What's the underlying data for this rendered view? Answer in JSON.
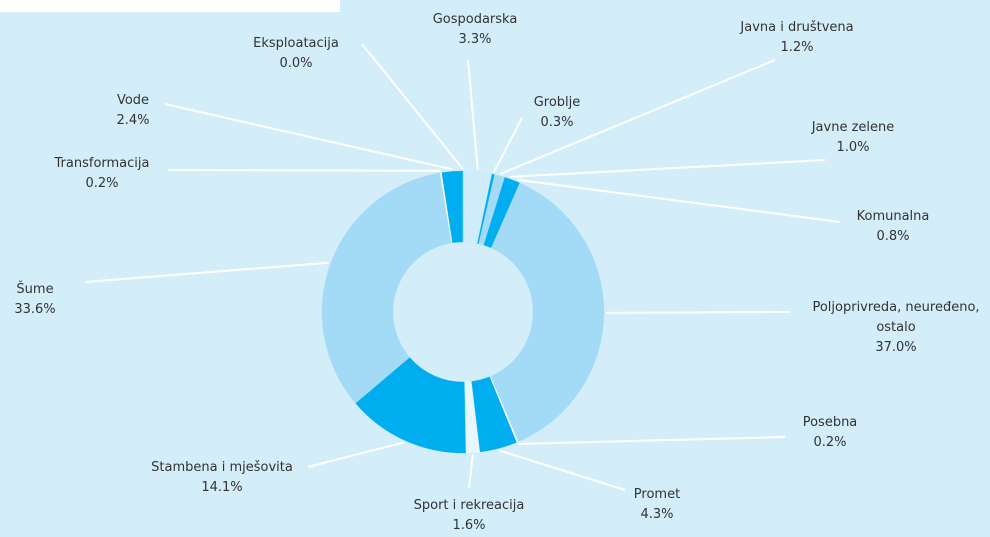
{
  "chart_data": {
    "type": "donut",
    "categories": [
      "Gospodarska",
      "Groblje",
      "Javna i društvena",
      "Javne zelene",
      "Komunalna",
      "Poljoprivreda, neuređeno, ostalo",
      "Posebna",
      "Promet",
      "Sport i rekreacija",
      "Stambena i mješovita",
      "Šume",
      "Transformacija",
      "Vode",
      "Eksploatacija"
    ],
    "values": [
      3.3,
      0.3,
      1.2,
      1.0,
      0.8,
      37.0,
      0.2,
      4.3,
      1.6,
      14.1,
      33.6,
      0.2,
      2.4,
      0.0
    ],
    "value_labels": [
      "3.3%",
      "0.3%",
      "1.2%",
      "1.0%",
      "0.8%",
      "37.0%",
      "0.2%",
      "4.3%",
      "1.6%",
      "14.1%",
      "33.6%",
      "0.2%",
      "2.4%",
      "0.0%"
    ],
    "colors": [
      "#cfecfa",
      "#00aeef",
      "#a3dbf6",
      "#00aeef",
      "#00aeef",
      "#a3dbf6",
      "#ffffff",
      "#00aeef",
      "#e8f6fd",
      "#00aeef",
      "#a3dbf6",
      "#ffffff",
      "#00aeef",
      "#a3dbf6"
    ]
  }
}
